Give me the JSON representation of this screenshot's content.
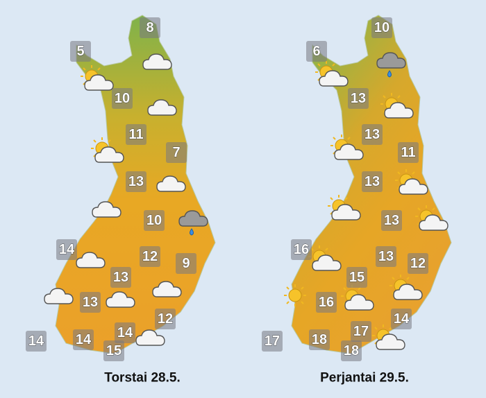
{
  "maps": [
    {
      "label": "Torstai 28.5.",
      "temperatures": [
        8,
        5,
        10,
        11,
        7,
        13,
        10,
        14,
        12,
        9,
        13,
        13,
        14,
        12,
        14,
        14,
        15
      ]
    },
    {
      "label": "Perjantai 29.5.",
      "temperatures": [
        10,
        6,
        13,
        13,
        11,
        13,
        13,
        16,
        13,
        12,
        15,
        16,
        14,
        17,
        17,
        18,
        18
      ]
    }
  ]
}
